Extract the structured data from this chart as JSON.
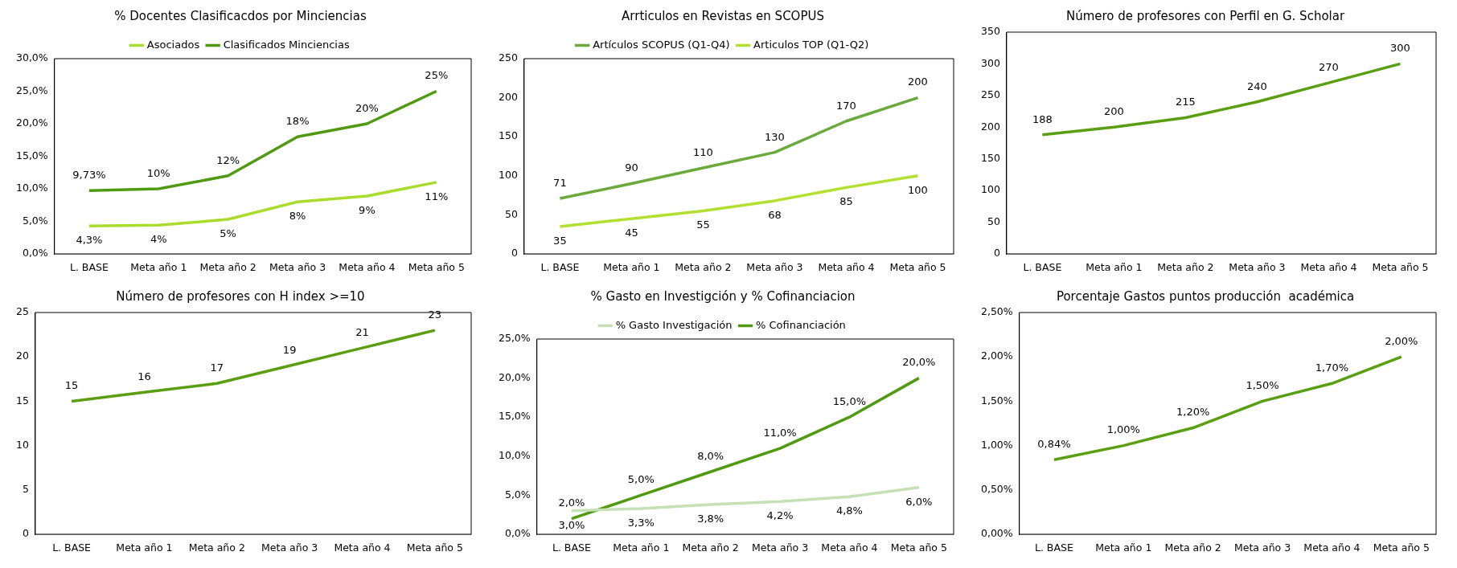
{
  "chart_data": [
    {
      "type": "line",
      "title": "% Docentes Clasificacdos por Minciencias",
      "categories": [
        "L. BASE",
        "Meta año 1",
        "Meta año 2",
        "Meta año 3",
        "Meta año 4",
        "Meta año 5"
      ],
      "series": [
        {
          "name": "Asociados",
          "color": "#a9dc2c",
          "values": [
            4.3,
            4.4,
            5.3,
            8,
            8.9,
            11
          ],
          "value_labels": [
            "4,3%",
            "4%",
            "5%",
            "8%",
            "9%",
            "11%"
          ]
        },
        {
          "name": "Clasificados Minciencias",
          "color": "#4f9a10",
          "values": [
            9.73,
            10,
            12,
            18,
            20,
            25
          ],
          "value_labels": [
            "9,73%",
            "10%",
            "12%",
            "18%",
            "20%",
            "25%"
          ]
        }
      ],
      "ylim": [
        0,
        30
      ],
      "yticks": [
        {
          "value": 0,
          "label": "0,0%"
        },
        {
          "value": 5,
          "label": "5,0%"
        },
        {
          "value": 10,
          "label": "10,0%"
        },
        {
          "value": 15,
          "label": "15,0%"
        },
        {
          "value": 20,
          "label": "20,0%"
        },
        {
          "value": 25,
          "label": "25,0%"
        },
        {
          "value": 30,
          "label": "30,0%"
        }
      ],
      "legend": "top",
      "marker": "none"
    },
    {
      "type": "line",
      "title": "Arrticulos en Revistas en SCOPUS",
      "categories": [
        "L. BASE",
        "Meta año 1",
        "Meta año 2",
        "Meta año 3",
        "Meta año 4",
        "Meta año 5"
      ],
      "series": [
        {
          "name": "Artículos SCOPUS (Q1-Q4)",
          "color": "#6aaa3c",
          "values": [
            71,
            90,
            110,
            130,
            170,
            200
          ],
          "value_labels": [
            "71",
            "90",
            "110",
            "130",
            "170",
            "200"
          ]
        },
        {
          "name": "Articulos TOP (Q1-Q2)",
          "color": "#b2e02e",
          "values": [
            35,
            45,
            55,
            68,
            85,
            100
          ],
          "value_labels": [
            "35",
            "45",
            "55",
            "68",
            "85",
            "100"
          ]
        }
      ],
      "ylim": [
        0,
        250
      ],
      "yticks": [
        0,
        50,
        100,
        150,
        200,
        250
      ],
      "legend": "top",
      "marker": "none"
    },
    {
      "type": "line",
      "title": "Número de profesores con Perfil en G. Scholar",
      "categories": [
        "L. BASE",
        "Meta año 1",
        "Meta año 2",
        "Meta año 3",
        "Meta año 4",
        "Meta año 5"
      ],
      "series": [
        {
          "color": "#5a9e12",
          "values": [
            188,
            200,
            215,
            240,
            270,
            300
          ],
          "value_labels": [
            "188",
            "200",
            "215",
            "240",
            "270",
            "300"
          ]
        }
      ],
      "ylim": [
        0,
        350
      ],
      "yticks": [
        0,
        50,
        100,
        150,
        200,
        250,
        300,
        350
      ],
      "marker": "none"
    },
    {
      "type": "line",
      "title": "Número de profesores con H index >=10",
      "categories": [
        "L. BASE",
        "Meta año 1",
        "Meta año 2",
        "Meta año 3",
        "Meta año 4",
        "Meta año 5"
      ],
      "series": [
        {
          "color": "#5a9e12",
          "values": [
            15,
            16,
            17,
            19,
            21,
            23
          ],
          "value_labels": [
            "15",
            "16",
            "17",
            "19",
            "21",
            "23"
          ]
        }
      ],
      "ylim": [
        0,
        25
      ],
      "yticks": [
        0,
        5,
        10,
        15,
        20,
        25
      ],
      "marker": "none"
    },
    {
      "type": "line",
      "title": "% Gasto en Investigción y % Cofinanciacion",
      "categories": [
        "L. BASE",
        "Meta año 1",
        "Meta año 2",
        "Meta año 3",
        "Meta año 4",
        "Meta año 5"
      ],
      "series": [
        {
          "name": "% Gasto Investigación",
          "color": "#c5e0b4",
          "values": [
            3,
            3.3,
            3.8,
            4.2,
            4.8,
            6
          ],
          "value_labels": [
            "3,0%",
            "3,3%",
            "3,8%",
            "4,2%",
            "4,8%",
            "6,0%"
          ]
        },
        {
          "name": "% Cofinanciación",
          "color": "#4f9a10",
          "values": [
            2,
            5,
            8,
            11,
            15,
            20
          ],
          "value_labels": [
            "2,0%",
            "5,0%",
            "8,0%",
            "11,0%",
            "15,0%",
            "20,0%"
          ]
        }
      ],
      "ylim": [
        0,
        25
      ],
      "yticks": [
        {
          "value": 0,
          "label": "0,0%"
        },
        {
          "value": 5,
          "label": "5,0%"
        },
        {
          "value": 10,
          "label": "10,0%"
        },
        {
          "value": 15,
          "label": "15,0%"
        },
        {
          "value": 20,
          "label": "20,0%"
        },
        {
          "value": 25,
          "label": "25,0%"
        }
      ],
      "legend": "top",
      "marker": "none"
    },
    {
      "type": "line",
      "title": "Porcentaje Gastos puntos producción  académica",
      "categories": [
        "L. BASE",
        "Meta año 1",
        "Meta año 2",
        "Meta año 3",
        "Meta año 4",
        "Meta año 5"
      ],
      "series": [
        {
          "color": "#5a9e12",
          "values": [
            0.84,
            1,
            1.2,
            1.5,
            1.7,
            2
          ],
          "value_labels": [
            "0,84%",
            "1,00%",
            "1,20%",
            "1,50%",
            "1,70%",
            "2,00%"
          ]
        }
      ],
      "ylim": [
        0,
        2.5
      ],
      "yticks": [
        {
          "value": 0,
          "label": "0,00%"
        },
        {
          "value": 0.5,
          "label": "0,50%"
        },
        {
          "value": 1,
          "label": "1,00%"
        },
        {
          "value": 1.5,
          "label": "1,50%"
        },
        {
          "value": 2,
          "label": "2,00%"
        },
        {
          "value": 2.5,
          "label": "2,50%"
        }
      ],
      "marker": "none"
    }
  ]
}
